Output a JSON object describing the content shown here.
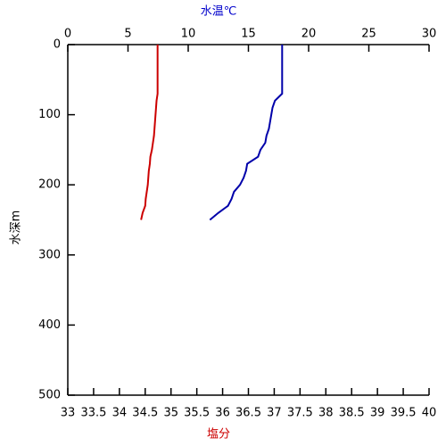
{
  "chart_data": {
    "type": "line",
    "xlabel": "塩分",
    "xlabel_color": "#cc0000",
    "xlim": [
      33,
      40
    ],
    "xticks": [
      33,
      33.5,
      34,
      34.5,
      35,
      35.5,
      36,
      36.5,
      37,
      37.5,
      38,
      38.5,
      39,
      39.5,
      40
    ],
    "x2label": "水温℃",
    "x2label_color": "#0000cc",
    "x2lim": [
      0,
      30
    ],
    "x2ticks": [
      0,
      5,
      10,
      15,
      20,
      25,
      30
    ],
    "ylabel": "水深m",
    "ylim": [
      0,
      500
    ],
    "yticks": [
      0,
      100,
      200,
      300,
      400,
      500
    ],
    "y_inverted": true,
    "depth": [
      0,
      10,
      20,
      30,
      40,
      50,
      60,
      70,
      80,
      90,
      100,
      110,
      120,
      130,
      140,
      150,
      160,
      170,
      180,
      190,
      200,
      210,
      220,
      230,
      240,
      250
    ],
    "series": [
      {
        "color": "#0000aa",
        "axis": "x2",
        "values": [
          17.8,
          17.8,
          17.8,
          17.8,
          17.8,
          17.8,
          17.8,
          17.8,
          17.2,
          17.0,
          16.9,
          16.8,
          16.7,
          16.5,
          16.4,
          16.0,
          15.8,
          14.9,
          14.8,
          14.6,
          14.3,
          13.8,
          13.6,
          13.3,
          12.5,
          11.8
        ]
      },
      {
        "color": "#cc0000",
        "axis": "x",
        "values": [
          34.74,
          34.74,
          34.74,
          34.74,
          34.74,
          34.74,
          34.74,
          34.74,
          34.72,
          34.71,
          34.7,
          34.69,
          34.68,
          34.67,
          34.65,
          34.63,
          34.6,
          34.59,
          34.57,
          34.56,
          34.55,
          34.53,
          34.51,
          34.5,
          34.45,
          34.42
        ]
      }
    ]
  }
}
